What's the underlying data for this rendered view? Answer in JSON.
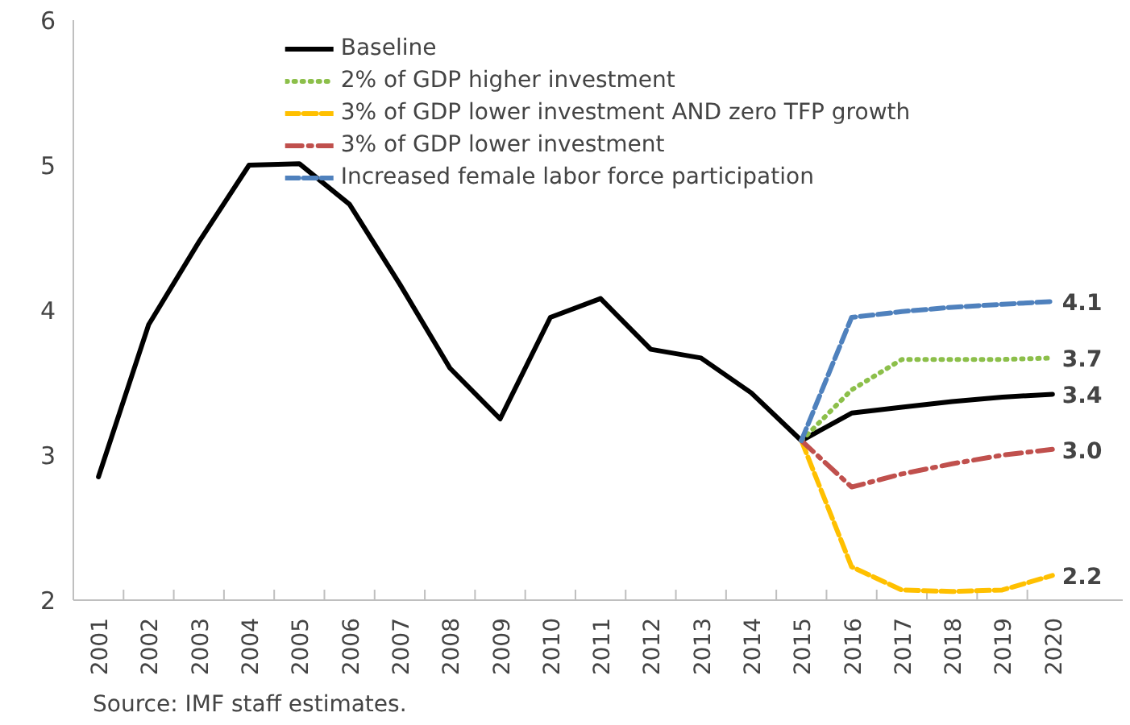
{
  "chart_data": {
    "type": "line",
    "categories": [
      "2001",
      "2002",
      "2003",
      "2004",
      "2005",
      "2006",
      "2007",
      "2008",
      "2009",
      "2010",
      "2011",
      "2012",
      "2013",
      "2014",
      "2015",
      "2016",
      "2017",
      "2018",
      "2019",
      "2020"
    ],
    "series": [
      {
        "name": "Baseline",
        "color": "#000000",
        "line_style": "solid",
        "values": [
          2.85,
          3.9,
          4.47,
          5.0,
          5.01,
          4.73,
          4.18,
          3.6,
          3.25,
          3.95,
          4.08,
          3.73,
          3.67,
          3.43,
          3.1,
          3.29,
          3.33,
          3.37,
          3.4,
          3.42
        ]
      },
      {
        "name": "2% of GDP higher investment",
        "color": "#8cbf4a",
        "line_style": "dotted",
        "values": [
          null,
          null,
          null,
          null,
          null,
          null,
          null,
          null,
          null,
          null,
          null,
          null,
          null,
          null,
          3.1,
          3.45,
          3.66,
          3.66,
          3.66,
          3.67
        ]
      },
      {
        "name": "3% of GDP lower investment AND zero TFP growth",
        "color": "#ffc000",
        "line_style": "dashed",
        "values": [
          null,
          null,
          null,
          null,
          null,
          null,
          null,
          null,
          null,
          null,
          null,
          null,
          null,
          null,
          3.1,
          2.23,
          2.07,
          2.06,
          2.07,
          2.17
        ]
      },
      {
        "name": "3% of GDP lower investment",
        "color": "#c0504d",
        "line_style": "dashdot",
        "values": [
          null,
          null,
          null,
          null,
          null,
          null,
          null,
          null,
          null,
          null,
          null,
          null,
          null,
          null,
          3.1,
          2.78,
          2.87,
          2.94,
          3.0,
          3.04
        ]
      },
      {
        "name": "Increased female labor force participation",
        "color": "#4f81bd",
        "line_style": "dashed",
        "values": [
          null,
          null,
          null,
          null,
          null,
          null,
          null,
          null,
          null,
          null,
          null,
          null,
          null,
          null,
          3.1,
          3.95,
          3.99,
          4.02,
          4.04,
          4.06
        ]
      }
    ],
    "ylim": [
      2,
      6
    ],
    "yticks": [
      2,
      3,
      4,
      5,
      6
    ],
    "grid": false,
    "legend": "top",
    "annotations": [
      {
        "text": "4.1",
        "x": "2020",
        "y": 4.06
      },
      {
        "text": "3.7",
        "x": "2020",
        "y": 3.67
      },
      {
        "text": "3.4",
        "x": "2020",
        "y": 3.42
      },
      {
        "text": "3.0",
        "x": "2020",
        "y": 3.04
      },
      {
        "text": "2.2",
        "x": "2020",
        "y": 2.17
      },
      "Source: IMF staff estimates."
    ]
  }
}
